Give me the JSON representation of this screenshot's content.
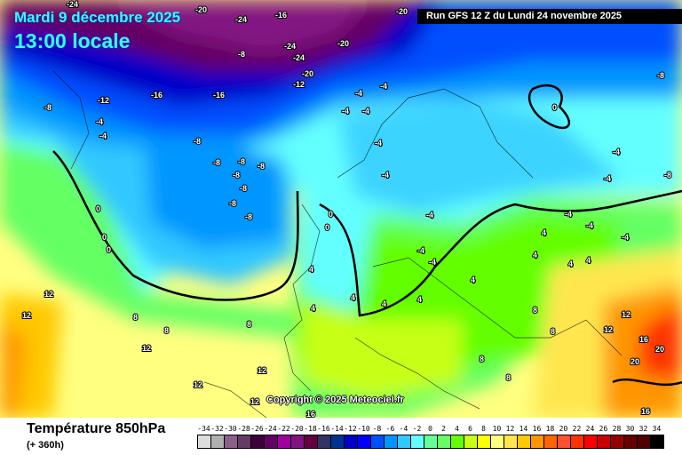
{
  "header": {
    "date": "Mardi 9 décembre 2025",
    "time": "13:00 locale",
    "run": "Run GFS 12 Z du Lundi 24 novembre 2025"
  },
  "copyright": "Copyright © 2025 Meteociel.fr",
  "footer": {
    "title": "Température 850hPa",
    "subtitle": "(+ 360h)"
  },
  "legend": {
    "labels": [
      "-34",
      "-32",
      "-30",
      "-28",
      "-26",
      "-24",
      "-22",
      "-20",
      "-18",
      "-16",
      "-14",
      "-12",
      "-10",
      "-8",
      "-6",
      "-4",
      "-2",
      "0",
      "2",
      "4",
      "6",
      "8",
      "10",
      "12",
      "14",
      "16",
      "18",
      "20",
      "22",
      "24",
      "26",
      "28",
      "30",
      "32",
      "34"
    ],
    "colors": [
      "#dcdcdc",
      "#b0b0b0",
      "#8c5f8c",
      "#643c64",
      "#3c003c",
      "#640064",
      "#a000a0",
      "#821482",
      "#640040",
      "#323264",
      "#003296",
      "#0000c8",
      "#0000ff",
      "#0050ff",
      "#0096ff",
      "#32c8ff",
      "#64ffff",
      "#64ff96",
      "#64ff64",
      "#64ff00",
      "#c8ff14",
      "#ffff00",
      "#ffff80",
      "#ffe650",
      "#ffc800",
      "#ff9600",
      "#ff6400",
      "#ff5032",
      "#ff3200",
      "#ff0000",
      "#c80000",
      "#960000",
      "#640000",
      "#500000",
      "#000000"
    ]
  },
  "map_labels": [
    "-24",
    "-24",
    "-20",
    "-20",
    "-16",
    "-24",
    "-24",
    "-20",
    "-20",
    "-12",
    "-16",
    "-8",
    "-16",
    "-8",
    "-4",
    "-4",
    "-12",
    "-8",
    "-4",
    "-4",
    "-4",
    "-4",
    "-4",
    "-4",
    "-8",
    "-8",
    "-8",
    "-8",
    "-8",
    "-8",
    "-8",
    "-4",
    "-4",
    "-4",
    "0",
    "0",
    "0",
    "0",
    "0",
    "0",
    "4",
    "4",
    "4",
    "4",
    "4",
    "4",
    "4",
    "8",
    "8",
    "8",
    "8",
    "8",
    "8",
    "12",
    "12",
    "12",
    "12",
    "12",
    "12",
    "12",
    "12",
    "16",
    "16",
    "16",
    "20",
    "20",
    "-4",
    "-4",
    "-4",
    "-8",
    "-8",
    "-4",
    "-4",
    "4",
    "4",
    "4",
    "8"
  ]
}
